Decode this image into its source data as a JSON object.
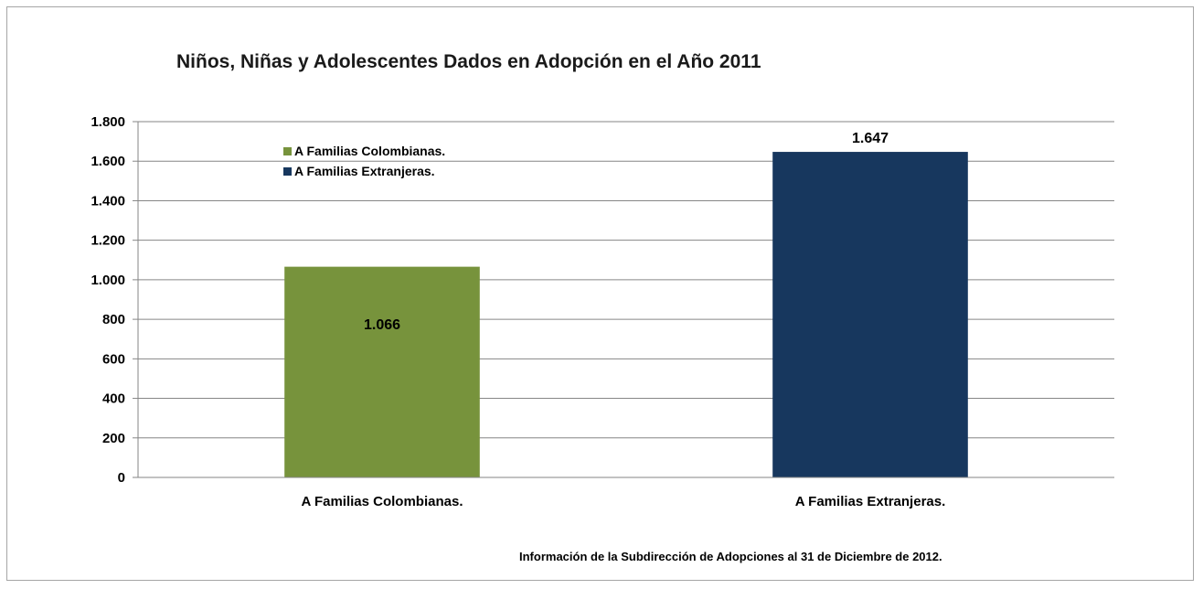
{
  "chart_data": {
    "type": "bar",
    "title": "Niños, Niñas y Adolescentes Dados en Adopción en el Año 2011",
    "categories": [
      "A Familias  Colombianas.",
      "A Familias  Extranjeras."
    ],
    "values": [
      1066,
      1647
    ],
    "value_labels": [
      "1.066",
      "1.647"
    ],
    "colors": [
      "#77933c",
      "#17375e"
    ],
    "ylim": [
      0,
      1800
    ],
    "yticks": [
      0,
      200,
      400,
      600,
      800,
      1000,
      1200,
      1400,
      1600,
      1800
    ],
    "ytick_labels": [
      "0",
      "200",
      "400",
      "600",
      "800",
      "1.000",
      "1.200",
      "1.400",
      "1.600",
      "1.800"
    ],
    "grid": true,
    "legend": {
      "placement": "top-left",
      "entries": [
        {
          "label": "A Familias Colombianas.",
          "color": "#77933c"
        },
        {
          "label": "A Familias Extranjeras.",
          "color": "#17375e"
        }
      ]
    },
    "xlabel": "",
    "ylabel": ""
  },
  "footer": {
    "source": "Información de la Subdirección de Adopciones al 31  de Diciembre de 2012."
  }
}
